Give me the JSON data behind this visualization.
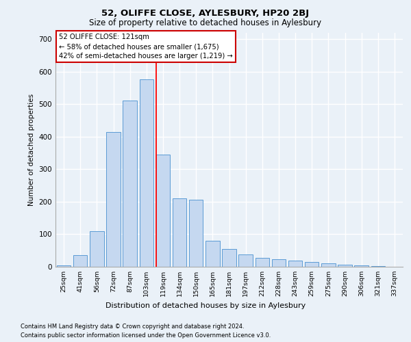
{
  "title1": "52, OLIFFE CLOSE, AYLESBURY, HP20 2BJ",
  "title2": "Size of property relative to detached houses in Aylesbury",
  "xlabel": "Distribution of detached houses by size in Aylesbury",
  "ylabel": "Number of detached properties",
  "categories": [
    "25sqm",
    "41sqm",
    "56sqm",
    "72sqm",
    "87sqm",
    "103sqm",
    "119sqm",
    "134sqm",
    "150sqm",
    "165sqm",
    "181sqm",
    "197sqm",
    "212sqm",
    "228sqm",
    "243sqm",
    "259sqm",
    "275sqm",
    "290sqm",
    "306sqm",
    "321sqm",
    "337sqm"
  ],
  "values": [
    5,
    35,
    110,
    415,
    510,
    575,
    345,
    210,
    205,
    80,
    55,
    38,
    27,
    23,
    18,
    14,
    10,
    7,
    5,
    2,
    1
  ],
  "bar_color": "#c5d8f0",
  "bar_edge_color": "#5b9bd5",
  "red_line_x": 6.0,
  "red_line_label": "52 OLIFFE CLOSE: 121sqm",
  "annotation_line1": "← 58% of detached houses are smaller (1,675)",
  "annotation_line2": "42% of semi-detached houses are larger (1,219) →",
  "annotation_box_color": "#ffffff",
  "annotation_box_edge": "#cc0000",
  "ylim": [
    0,
    720
  ],
  "yticks": [
    0,
    100,
    200,
    300,
    400,
    500,
    600,
    700
  ],
  "footnote1": "Contains HM Land Registry data © Crown copyright and database right 2024.",
  "footnote2": "Contains public sector information licensed under the Open Government Licence v3.0.",
  "bg_color": "#eaf1f8",
  "plot_bg_color": "#eaf1f8",
  "grid_color": "#ffffff"
}
